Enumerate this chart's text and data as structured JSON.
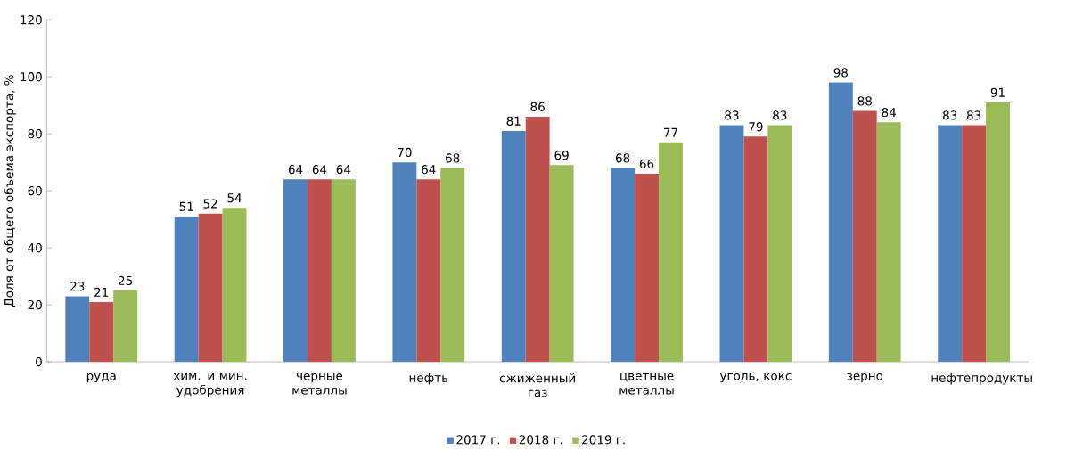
{
  "chart_data": {
    "type": "bar",
    "ylabel": "Доля от общего объема экспорта, %",
    "categories": [
      "руда",
      "хим. и мин. удобрения",
      "черные металлы",
      "нефть",
      "сжиженный газ",
      "цветные металлы",
      "уголь, кокс",
      "зерно",
      "нефтепродукты"
    ],
    "series": [
      {
        "name": "2017 г.",
        "color": "#4f81bd",
        "values": [
          23,
          51,
          64,
          70,
          81,
          68,
          83,
          98,
          83
        ]
      },
      {
        "name": "2018 г.",
        "color": "#c0504d",
        "values": [
          21,
          52,
          64,
          64,
          86,
          66,
          79,
          88,
          83
        ]
      },
      {
        "name": "2019 г.",
        "color": "#9bbb59",
        "values": [
          25,
          54,
          64,
          68,
          69,
          77,
          83,
          84,
          91
        ]
      }
    ],
    "ylim": [
      0,
      120
    ],
    "yticks": [
      0,
      20,
      40,
      60,
      80,
      100,
      120
    ],
    "data_labels": true,
    "legend": "bottom"
  }
}
